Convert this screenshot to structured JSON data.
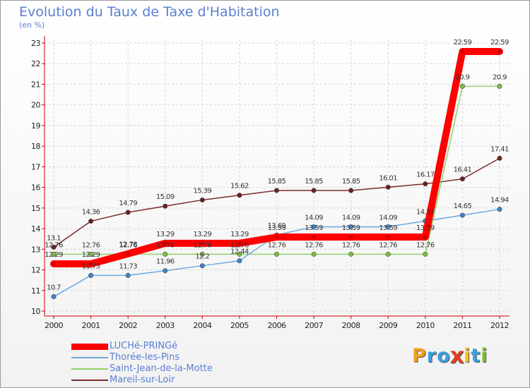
{
  "header": {
    "title": "Evolution du Taux de Taxe d'Habitation",
    "unit": "(en %)"
  },
  "logo": {
    "text": "Proxiti",
    "letters": [
      "P",
      "r",
      "o",
      "x",
      "i",
      "t",
      "i"
    ],
    "colors": [
      "#f0a020",
      "#3ba0e0",
      "#3ba0e0",
      "#e04020",
      "#f0c020",
      "#3ba0e0",
      "#7cc030"
    ]
  },
  "chart_data": {
    "type": "line",
    "title": "Evolution du Taux de Taxe d'Habitation",
    "ylabel": "(en %)",
    "xlabel": "",
    "x": [
      "2000",
      "2001",
      "2002",
      "2003",
      "2004",
      "2005",
      "2006",
      "2007",
      "2008",
      "2009",
      "2010",
      "2011",
      "2012"
    ],
    "ylim": [
      10,
      23
    ],
    "yticks": [
      "10",
      "11",
      "12",
      "13",
      "14",
      "15",
      "16",
      "17",
      "18",
      "19",
      "20",
      "21",
      "22",
      "23"
    ],
    "grid": true,
    "legend": "bottom-left",
    "series": [
      {
        "name": "LUCHé-PRINGé",
        "color": "#ff0000",
        "dot": "#cc0000",
        "values": [
          12.29,
          12.29,
          12.78,
          13.29,
          13.29,
          13.29,
          13.59,
          13.59,
          13.59,
          13.59,
          13.59,
          22.59,
          22.59
        ],
        "labels": [
          "12.29",
          "12.29",
          "12.78",
          "13.29",
          "13.29",
          "13.29",
          "13.59",
          "13.59",
          "13.59",
          "13.59",
          "13.59",
          "22.59",
          "22.59"
        ]
      },
      {
        "name": "Thorée-les-Pins",
        "color": "#6fa8dc",
        "dot": "#3d85c6",
        "values": [
          10.7,
          11.73,
          11.73,
          11.96,
          12.2,
          12.44,
          13.69,
          14.09,
          14.09,
          14.09,
          14.37,
          14.65,
          14.94
        ],
        "labels": [
          "10.7",
          "11.73",
          "11.73",
          "11.96",
          "12.2",
          "12.44",
          "13.69",
          "14.09",
          "14.09",
          "14.09",
          "14.37",
          "14.65",
          "14.94"
        ]
      },
      {
        "name": "Saint-Jean-de-la-Motte",
        "color": "#93d06a",
        "dot": "#7cc040",
        "values": [
          12.76,
          12.76,
          12.76,
          12.76,
          12.76,
          12.76,
          12.76,
          12.76,
          12.76,
          12.76,
          12.76,
          20.9,
          20.9
        ],
        "labels": [
          "12.76",
          "12.76",
          "12.76",
          "12.76",
          "12.76",
          "12.76",
          "12.76",
          "12.76",
          "12.76",
          "12.76",
          "12.76",
          "20.9",
          "20.9"
        ]
      },
      {
        "name": "Mareil-sur-Loir",
        "color": "#7b2c2c",
        "dot": "#6b1f1f",
        "values": [
          13.1,
          14.36,
          14.79,
          15.09,
          15.39,
          15.62,
          15.85,
          15.85,
          15.85,
          16.01,
          16.17,
          16.41,
          17.41
        ],
        "labels": [
          "13.1",
          "14.36",
          "14.79",
          "15.09",
          "15.39",
          "15.62",
          "15.85",
          "15.85",
          "15.85",
          "16.01",
          "16.17",
          "16.41",
          "17.41"
        ]
      }
    ]
  }
}
